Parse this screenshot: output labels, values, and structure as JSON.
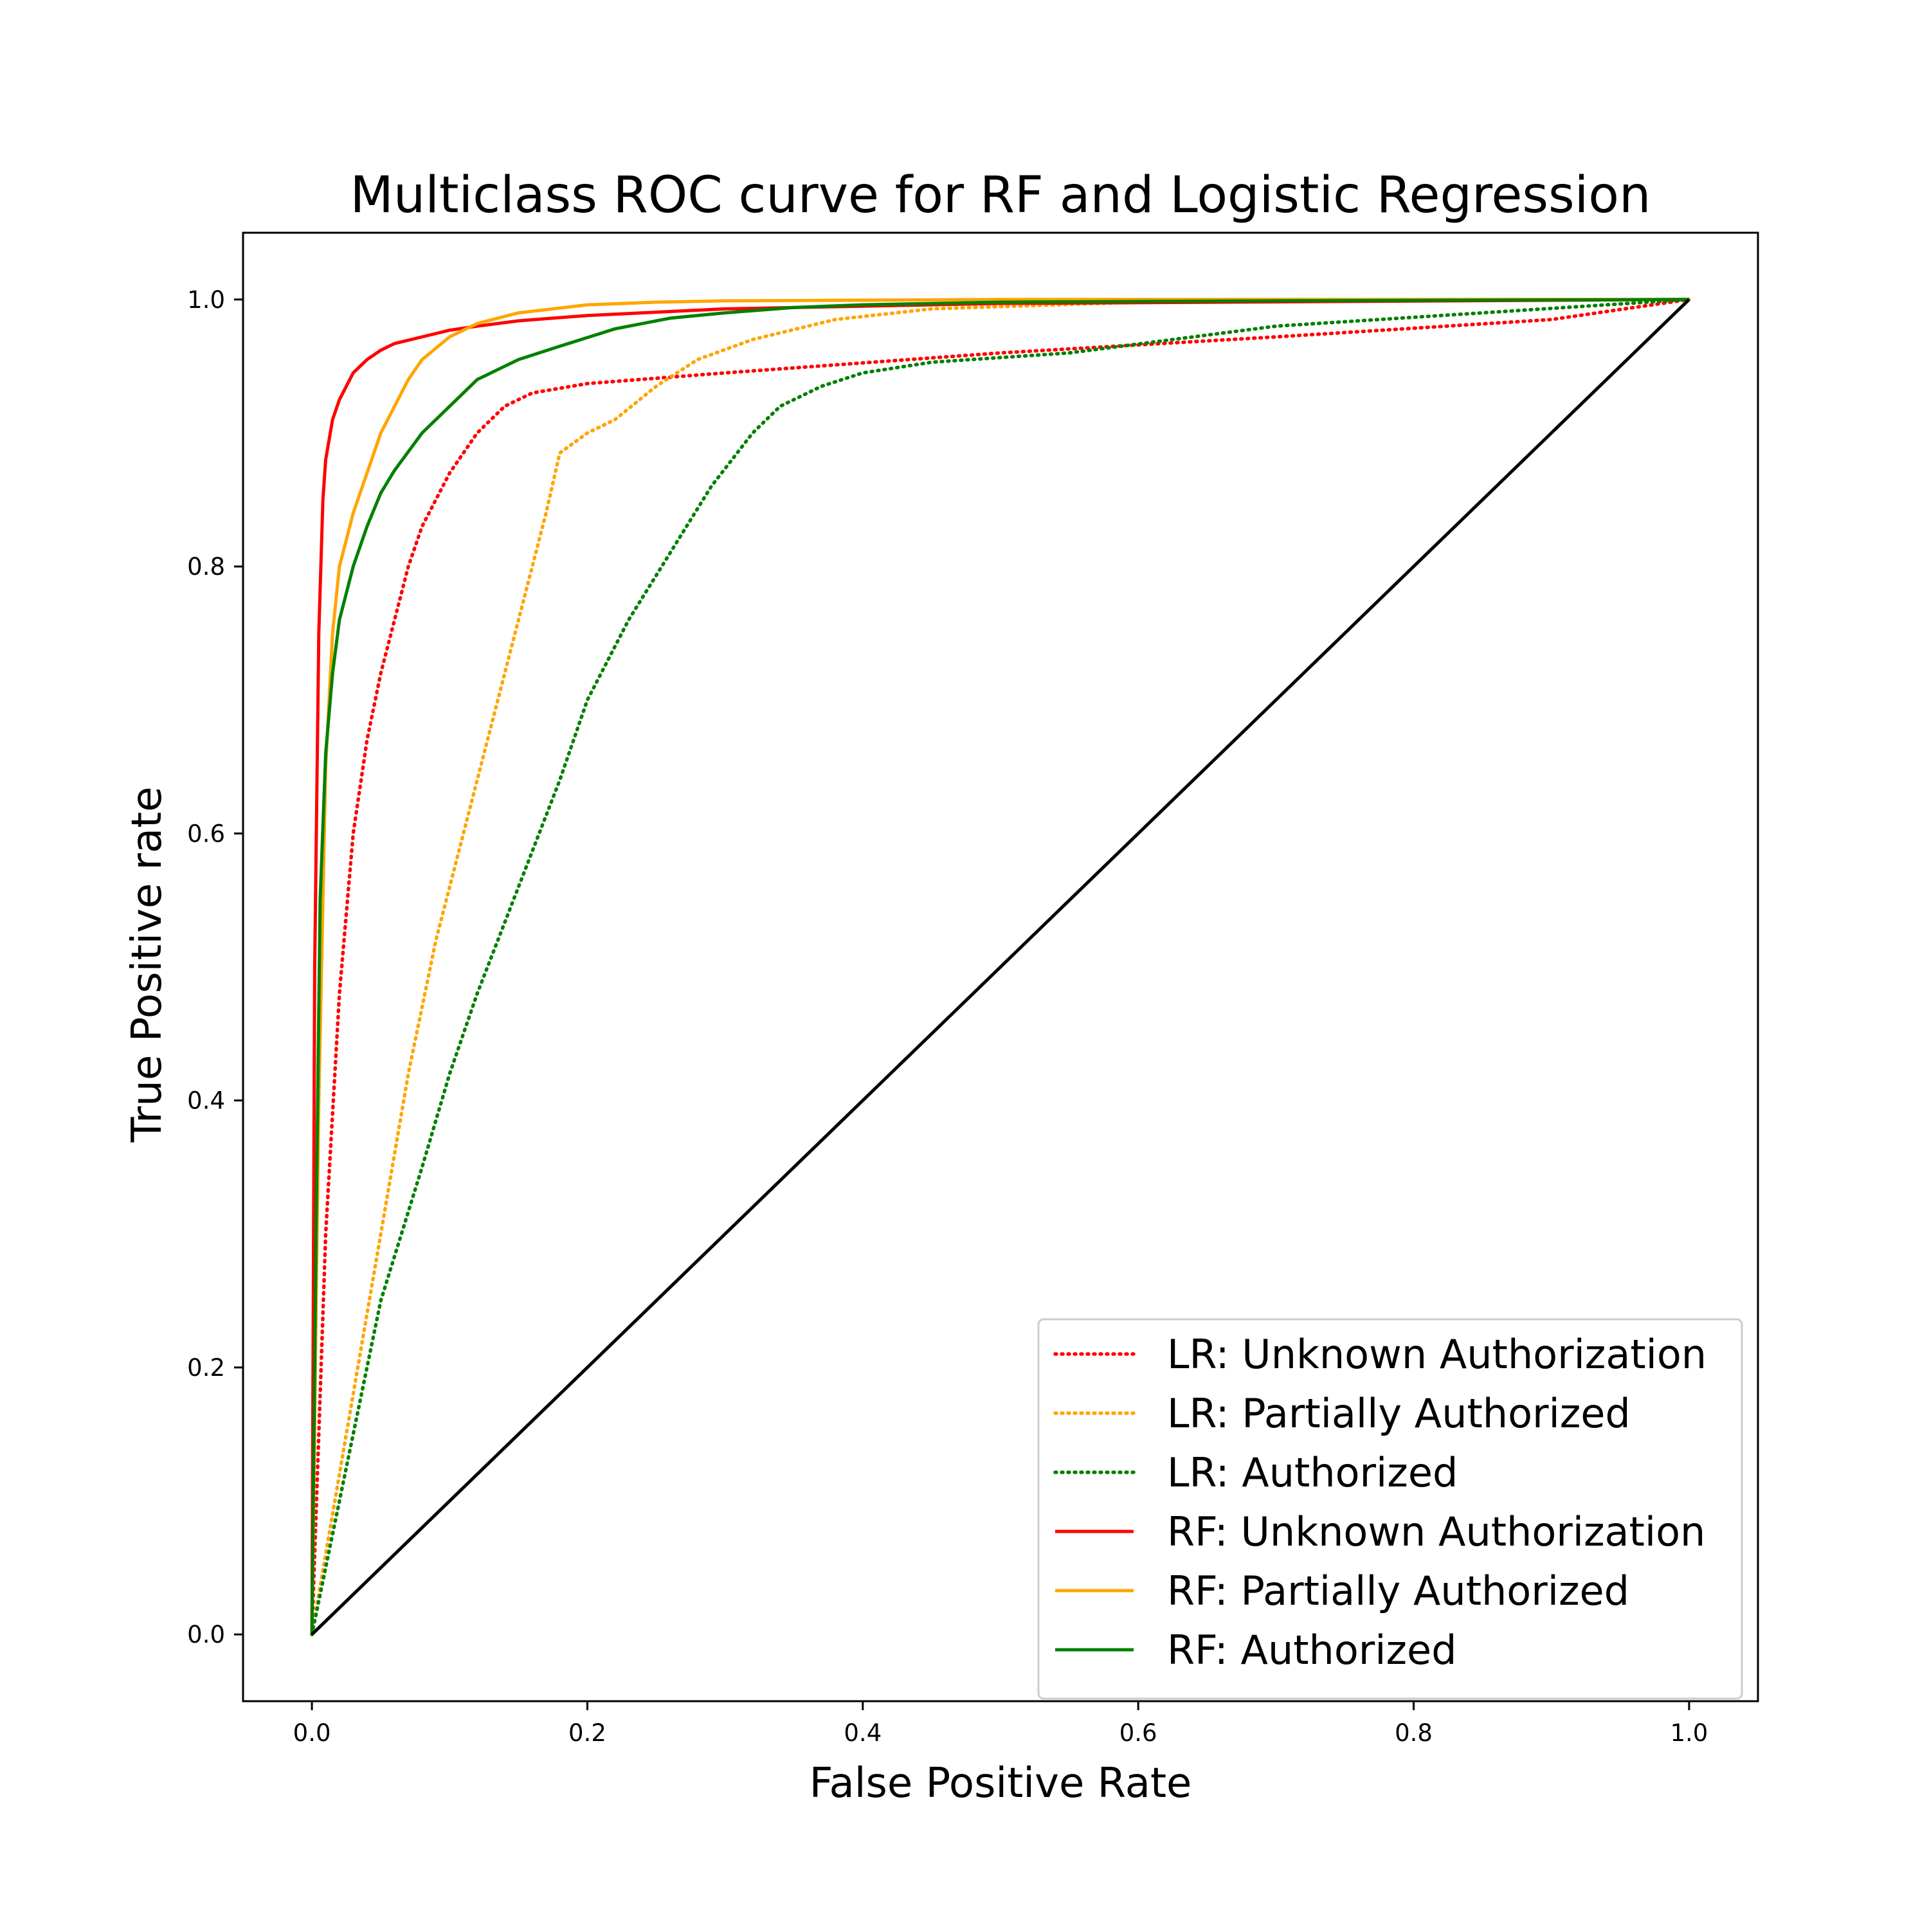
{
  "chart_data": {
    "type": "line",
    "title": "Multiclass ROC curve for RF and Logistic Regression",
    "xlabel": "False Positive Rate",
    "ylabel": "True Positive rate",
    "xlim": [
      -0.05,
      1.05
    ],
    "ylim": [
      -0.05,
      1.05
    ],
    "xticks": [
      "0.0",
      "0.2",
      "0.4",
      "0.6",
      "0.8",
      "1.0"
    ],
    "yticks": [
      "0.0",
      "0.2",
      "0.4",
      "0.6",
      "0.8",
      "1.0"
    ],
    "grid": false,
    "legend_position": "lower-right",
    "series": [
      {
        "name": "LR: Unknown Authorization",
        "color": "#ff0000",
        "style": "dotted",
        "x": [
          0,
          0.005,
          0.01,
          0.02,
          0.03,
          0.04,
          0.05,
          0.06,
          0.07,
          0.08,
          0.1,
          0.12,
          0.14,
          0.16,
          0.2,
          0.3,
          0.5,
          0.7,
          0.9,
          1.0
        ],
        "y": [
          0,
          0.15,
          0.3,
          0.48,
          0.6,
          0.67,
          0.72,
          0.76,
          0.8,
          0.83,
          0.87,
          0.9,
          0.92,
          0.93,
          0.937,
          0.945,
          0.96,
          0.972,
          0.985,
          1.0
        ]
      },
      {
        "name": "LR: Partially Authorized",
        "color": "#ffa500",
        "style": "dotted",
        "x": [
          0,
          0.01,
          0.03,
          0.05,
          0.07,
          0.09,
          0.11,
          0.13,
          0.15,
          0.17,
          0.18,
          0.2,
          0.22,
          0.25,
          0.28,
          0.32,
          0.38,
          0.45,
          0.6,
          0.8,
          1.0
        ],
        "y": [
          0,
          0.06,
          0.18,
          0.3,
          0.42,
          0.52,
          0.6,
          0.68,
          0.76,
          0.84,
          0.885,
          0.9,
          0.91,
          0.935,
          0.955,
          0.97,
          0.985,
          0.993,
          0.998,
          0.999,
          1.0
        ]
      },
      {
        "name": "LR: Authorized",
        "color": "#008000",
        "style": "dotted",
        "x": [
          0,
          0.01,
          0.03,
          0.05,
          0.08,
          0.1,
          0.12,
          0.15,
          0.18,
          0.2,
          0.23,
          0.26,
          0.29,
          0.32,
          0.34,
          0.37,
          0.4,
          0.45,
          0.55,
          0.7,
          0.85,
          1.0
        ],
        "y": [
          0,
          0.05,
          0.15,
          0.25,
          0.35,
          0.42,
          0.48,
          0.56,
          0.64,
          0.7,
          0.76,
          0.81,
          0.86,
          0.9,
          0.92,
          0.935,
          0.945,
          0.953,
          0.96,
          0.98,
          0.99,
          1.0
        ]
      },
      {
        "name": "RF: Unknown Authorization",
        "color": "#ff0000",
        "style": "solid",
        "x": [
          0,
          0.002,
          0.005,
          0.008,
          0.01,
          0.015,
          0.02,
          0.025,
          0.03,
          0.04,
          0.05,
          0.06,
          0.08,
          0.1,
          0.12,
          0.15,
          0.2,
          0.3,
          0.5,
          1.0
        ],
        "y": [
          0,
          0.5,
          0.75,
          0.85,
          0.88,
          0.91,
          0.925,
          0.935,
          0.945,
          0.955,
          0.962,
          0.967,
          0.972,
          0.977,
          0.98,
          0.984,
          0.988,
          0.993,
          0.997,
          1.0
        ]
      },
      {
        "name": "RF: Partially Authorized",
        "color": "#ffa500",
        "style": "solid",
        "x": [
          0,
          0.005,
          0.01,
          0.015,
          0.02,
          0.03,
          0.04,
          0.05,
          0.06,
          0.07,
          0.08,
          0.1,
          0.12,
          0.15,
          0.2,
          0.25,
          0.3,
          0.5,
          1.0
        ],
        "y": [
          0,
          0.4,
          0.65,
          0.75,
          0.8,
          0.84,
          0.87,
          0.9,
          0.92,
          0.94,
          0.955,
          0.972,
          0.982,
          0.99,
          0.996,
          0.998,
          0.999,
          1.0,
          1.0
        ]
      },
      {
        "name": "RF: Authorized",
        "color": "#008000",
        "style": "solid",
        "x": [
          0,
          0.003,
          0.006,
          0.01,
          0.015,
          0.02,
          0.03,
          0.04,
          0.05,
          0.06,
          0.08,
          0.1,
          0.12,
          0.15,
          0.18,
          0.22,
          0.26,
          0.3,
          0.35,
          0.4,
          0.5,
          0.7,
          1.0
        ],
        "y": [
          0,
          0.3,
          0.55,
          0.66,
          0.72,
          0.76,
          0.8,
          0.83,
          0.855,
          0.872,
          0.9,
          0.92,
          0.94,
          0.955,
          0.965,
          0.978,
          0.986,
          0.99,
          0.994,
          0.996,
          0.998,
          0.999,
          1.0
        ]
      },
      {
        "name": "",
        "color": "#000000",
        "style": "solid",
        "x": [
          0,
          1
        ],
        "y": [
          0,
          1
        ]
      }
    ]
  }
}
